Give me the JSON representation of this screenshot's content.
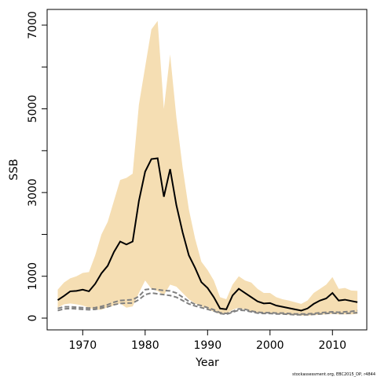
{
  "chart_data": {
    "type": "line",
    "xlabel": "Year",
    "ylabel": "SSB",
    "footnote": "stockassessment.org, EBC2015_DP, r4844",
    "x": [
      1966,
      1967,
      1968,
      1969,
      1970,
      1971,
      1972,
      1973,
      1974,
      1975,
      1976,
      1977,
      1978,
      1979,
      1980,
      1981,
      1982,
      1983,
      1984,
      1985,
      1986,
      1987,
      1988,
      1989,
      1990,
      1991,
      1992,
      1993,
      1994,
      1995,
      1996,
      1997,
      1998,
      1999,
      2000,
      2001,
      2002,
      2003,
      2004,
      2005,
      2006,
      2007,
      2008,
      2009,
      2010,
      2011,
      2012,
      2013,
      2014
    ],
    "band": {
      "color": "#f5deb3",
      "upper": [
        680,
        850,
        950,
        1000,
        1080,
        1100,
        1500,
        2000,
        2300,
        2800,
        3300,
        3350,
        3450,
        5100,
        6000,
        6900,
        7100,
        5000,
        6300,
        4800,
        3600,
        2600,
        1900,
        1350,
        1150,
        900,
        500,
        450,
        800,
        1000,
        900,
        850,
        700,
        600,
        600,
        500,
        450,
        420,
        380,
        340,
        420,
        600,
        700,
        800,
        980,
        700,
        720,
        660,
        650
      ],
      "lower": [
        250,
        330,
        350,
        330,
        300,
        250,
        200,
        200,
        260,
        300,
        350,
        250,
        280,
        600,
        900,
        700,
        650,
        550,
        800,
        750,
        600,
        450,
        350,
        280,
        220,
        150,
        100,
        100,
        200,
        250,
        200,
        160,
        130,
        110,
        110,
        100,
        90,
        80,
        70,
        60,
        60,
        70,
        80,
        90,
        100,
        90,
        90,
        90,
        100
      ]
    },
    "series": [
      {
        "color": "#000000",
        "dashed": false,
        "width": 2,
        "values": [
          430,
          530,
          640,
          650,
          680,
          640,
          820,
          1070,
          1250,
          1580,
          1830,
          1760,
          1830,
          2800,
          3500,
          3800,
          3820,
          2900,
          3560,
          2700,
          2050,
          1500,
          1200,
          860,
          720,
          500,
          230,
          210,
          540,
          700,
          600,
          500,
          400,
          350,
          360,
          300,
          270,
          240,
          210,
          180,
          230,
          340,
          420,
          470,
          600,
          420,
          440,
          410,
          380
        ]
      },
      {
        "color": "#808080",
        "dashed": true,
        "width": 2,
        "values": [
          230,
          270,
          270,
          260,
          250,
          240,
          250,
          280,
          320,
          380,
          420,
          430,
          440,
          520,
          680,
          700,
          680,
          660,
          650,
          600,
          500,
          400,
          330,
          300,
          250,
          200,
          130,
          110,
          160,
          220,
          210,
          170,
          140,
          130,
          130,
          120,
          120,
          110,
          100,
          100,
          100,
          110,
          130,
          140,
          150,
          140,
          150,
          160,
          180
        ]
      },
      {
        "color": "#808080",
        "dashed": true,
        "width": 2,
        "values": [
          180,
          220,
          230,
          220,
          210,
          200,
          210,
          240,
          270,
          320,
          350,
          360,
          360,
          440,
          560,
          600,
          580,
          560,
          540,
          500,
          420,
          340,
          290,
          250,
          210,
          170,
          110,
          90,
          140,
          190,
          180,
          150,
          120,
          110,
          110,
          100,
          100,
          90,
          80,
          80,
          80,
          90,
          100,
          110,
          120,
          110,
          110,
          120,
          130
        ]
      }
    ],
    "xlim": [
      1964.3,
      2015.5
    ],
    "ylim": [
      -281,
      7375
    ],
    "xticks": [
      1970,
      1980,
      1990,
      2000,
      2010
    ],
    "yticks": [
      0,
      1000,
      3000,
      5000,
      7000
    ],
    "yminor_ticks": [
      2000,
      4000,
      6000
    ]
  }
}
